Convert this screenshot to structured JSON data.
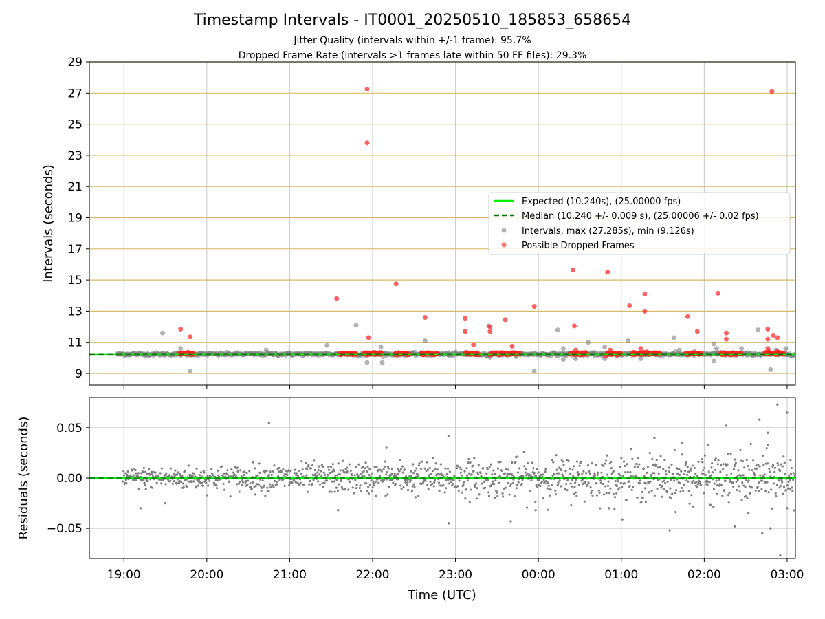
{
  "title": "Timestamp Intervals - IT0001_20250510_185853_658654",
  "subtitle_1": "Jitter Quality (intervals within +/-1 frame): 95.7%",
  "subtitle_2": "Dropped Frame Rate (intervals >1 frames late within 50 FF files): 29.3%",
  "colors": {
    "expected": "#00ee00",
    "median": "#007700",
    "intervals": "#808080",
    "dropped": "#ff2020",
    "frame_lines": "#d4bb6c",
    "grid": "#c8c8c8"
  },
  "chart_data": [
    {
      "type": "scatter",
      "panel": "intervals",
      "ylabel": "Intervals (seconds)",
      "ylim": [
        8.25,
        29
      ],
      "yticks": [
        "9",
        "11",
        "13",
        "15",
        "17",
        "19",
        "21",
        "23",
        "25",
        "27",
        "29"
      ],
      "xlim": [
        "18:35",
        "03:06"
      ],
      "grid": true,
      "legend_position": "center-right",
      "legend": [
        "Expected (10.240s), (25.00000 fps)",
        "Median (10.240 +/- 0.009 s), (25.00006 +/- 0.02 fps)",
        "Intervals, max (27.285s), min (9.126s)",
        "Possible Dropped Frames"
      ],
      "expected": 10.24,
      "median": 10.24,
      "frame_lines": [
        9.0,
        10.24,
        11.0,
        13.0,
        15.0,
        17.0,
        19.0,
        21.0,
        23.0,
        25.0,
        27.0,
        29.0
      ],
      "baseline_band": {
        "x_from": "18:55",
        "x_to": "03:06",
        "y": 10.24,
        "jitter": 0.05
      },
      "series": [
        {
          "name": "Intervals, max (27.285s), min (9.126s)",
          "points": [
            [
              "19:28",
              11.6
            ],
            [
              "19:41",
              10.6
            ],
            [
              "19:48",
              9.13
            ],
            [
              "20:43",
              10.5
            ],
            [
              "21:01",
              10.3
            ],
            [
              "21:27",
              10.8
            ],
            [
              "21:48",
              12.1
            ],
            [
              "21:56",
              9.7
            ],
            [
              "22:07",
              9.7
            ],
            [
              "22:06",
              10.7
            ],
            [
              "22:38",
              11.1
            ],
            [
              "23:24",
              12.05
            ],
            [
              "23:25",
              10.05
            ],
            [
              "23:57",
              9.13
            ],
            [
              "00:14",
              11.8
            ],
            [
              "00:18",
              10.6
            ],
            [
              "00:18",
              9.9
            ],
            [
              "00:27",
              9.95
            ],
            [
              "00:36",
              11.0
            ],
            [
              "00:48",
              10.7
            ],
            [
              "00:48",
              9.95
            ],
            [
              "01:05",
              11.1
            ],
            [
              "01:14",
              9.95
            ],
            [
              "01:20",
              10.2
            ],
            [
              "01:38",
              11.3
            ],
            [
              "01:42",
              10.5
            ],
            [
              "01:47",
              10.2
            ],
            [
              "01:53",
              10.4
            ],
            [
              "02:07",
              9.8
            ],
            [
              "02:07",
              10.9
            ],
            [
              "02:09",
              10.6
            ],
            [
              "02:27",
              10.6
            ],
            [
              "02:39",
              11.8
            ],
            [
              "02:40",
              10.2
            ],
            [
              "02:48",
              9.25
            ],
            [
              "02:52",
              10.5
            ],
            [
              "02:59",
              10.6
            ],
            [
              "01:25",
              10.2
            ],
            [
              "23:47",
              10.2
            ],
            [
              "22:55",
              10.2
            ]
          ]
        },
        {
          "name": "Possible Dropped Frames",
          "points": [
            [
              "19:41",
              11.85
            ],
            [
              "19:48",
              11.35
            ],
            [
              "21:34",
              13.8
            ],
            [
              "21:56",
              27.25
            ],
            [
              "21:56",
              23.8
            ],
            [
              "21:57",
              11.3
            ],
            [
              "22:17",
              14.75
            ],
            [
              "22:38",
              12.6
            ],
            [
              "23:07",
              12.55
            ],
            [
              "23:07",
              11.7
            ],
            [
              "23:13",
              10.85
            ],
            [
              "23:25",
              12.0
            ],
            [
              "23:25",
              11.7
            ],
            [
              "23:36",
              12.45
            ],
            [
              "23:41",
              10.75
            ],
            [
              "23:57",
              13.3
            ],
            [
              "00:25",
              15.65
            ],
            [
              "00:26",
              12.05
            ],
            [
              "00:27",
              10.5
            ],
            [
              "00:50",
              15.5
            ],
            [
              "00:52",
              10.5
            ],
            [
              "01:06",
              13.35
            ],
            [
              "01:14",
              10.6
            ],
            [
              "01:17",
              14.1
            ],
            [
              "01:17",
              13.0
            ],
            [
              "01:48",
              12.65
            ],
            [
              "01:55",
              11.7
            ],
            [
              "02:10",
              14.15
            ],
            [
              "02:16",
              11.6
            ],
            [
              "02:16",
              11.2
            ],
            [
              "02:46",
              11.85
            ],
            [
              "02:46",
              11.2
            ],
            [
              "02:46",
              10.6
            ],
            [
              "02:49",
              27.1
            ],
            [
              "02:50",
              11.45
            ],
            [
              "02:53",
              11.3
            ],
            [
              "02:47",
              10.4
            ],
            [
              "02:53",
              10.4
            ]
          ],
          "clusters": [
            {
              "from": "19:40",
              "to": "19:51",
              "y": 10.27
            },
            {
              "from": "21:36",
              "to": "21:48",
              "y": 10.27
            },
            {
              "from": "21:54",
              "to": "22:07",
              "y": 10.28
            },
            {
              "from": "22:16",
              "to": "22:27",
              "y": 10.27
            },
            {
              "from": "22:35",
              "to": "22:47",
              "y": 10.27
            },
            {
              "from": "23:07",
              "to": "23:17",
              "y": 10.27
            },
            {
              "from": "23:25",
              "to": "23:36",
              "y": 10.27
            },
            {
              "from": "23:36",
              "to": "23:47",
              "y": 10.27
            },
            {
              "from": "00:23",
              "to": "00:35",
              "y": 10.27
            },
            {
              "from": "00:49",
              "to": "01:00",
              "y": 10.27
            },
            {
              "from": "01:08",
              "to": "01:20",
              "y": 10.27
            },
            {
              "from": "01:20",
              "to": "01:28",
              "y": 10.27
            },
            {
              "from": "01:47",
              "to": "01:58",
              "y": 10.27
            },
            {
              "from": "02:12",
              "to": "02:27",
              "y": 10.27
            },
            {
              "from": "02:44",
              "to": "02:58",
              "y": 10.27
            }
          ]
        }
      ]
    },
    {
      "type": "scatter",
      "panel": "residuals",
      "ylabel": "Residuals (seconds)",
      "xlabel": "Time (UTC)",
      "ylim": [
        -0.08,
        0.08
      ],
      "yticks": [
        "−0.05",
        "0.00",
        "0.05"
      ],
      "ytick_values": [
        -0.05,
        0.0,
        0.05
      ],
      "xlim": [
        "18:35",
        "03:06"
      ],
      "xticks": [
        "19:00",
        "20:00",
        "21:00",
        "22:00",
        "23:00",
        "00:00",
        "01:00",
        "02:00",
        "03:00"
      ],
      "grid": true,
      "expected": 0.0,
      "residual_spread": {
        "x_from": "18:59",
        "x_to": "03:06",
        "sd_start": 0.005,
        "sd_end": 0.013
      },
      "outliers": [
        [
          "20:45",
          0.055
        ],
        [
          "22:55",
          0.042
        ],
        [
          "22:55",
          -0.045
        ],
        [
          "23:40",
          -0.043
        ],
        [
          "01:35",
          -0.052
        ],
        [
          "02:16",
          0.052
        ],
        [
          "02:22",
          -0.048
        ],
        [
          "02:40",
          0.058
        ],
        [
          "02:42",
          -0.055
        ],
        [
          "02:46",
          0.045
        ],
        [
          "02:48",
          -0.05
        ],
        [
          "02:53",
          0.073
        ],
        [
          "02:55",
          -0.077
        ],
        [
          "03:00",
          0.065
        ],
        [
          "03:00",
          -0.03
        ],
        [
          "19:12",
          -0.03
        ],
        [
          "19:30",
          -0.025
        ],
        [
          "21:35",
          -0.032
        ],
        [
          "22:10",
          0.03
        ],
        [
          "23:58",
          -0.032
        ],
        [
          "00:51",
          -0.03
        ],
        [
          "01:24",
          0.04
        ],
        [
          "01:44",
          0.035
        ],
        [
          "02:32",
          -0.035
        ]
      ]
    }
  ]
}
